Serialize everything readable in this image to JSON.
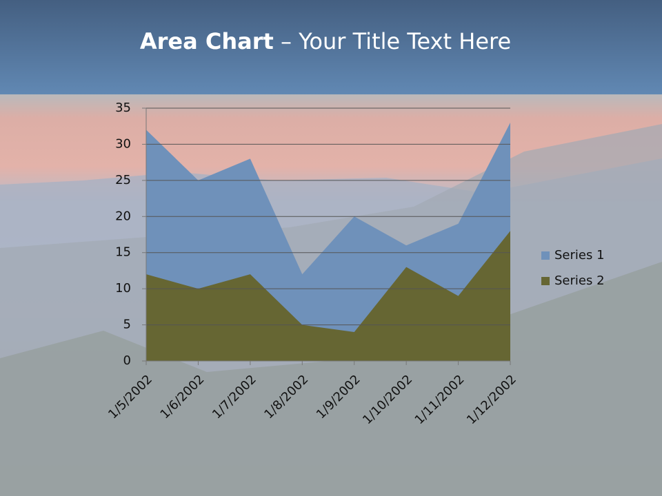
{
  "chart_data": {
    "type": "area",
    "title": {
      "bold": "Area Chart",
      "rest": "– Your Title Text Here"
    },
    "categories": [
      "1/5/2002",
      "1/6/2002",
      "1/7/2002",
      "1/8/2002",
      "1/9/2002",
      "1/10/2002",
      "1/11/2002",
      "1/12/2002"
    ],
    "series": [
      {
        "name": "Series 1",
        "color": "#6f91ba",
        "values": [
          32,
          25,
          28,
          12,
          20,
          16,
          19,
          33
        ]
      },
      {
        "name": "Series 2",
        "color": "#666633",
        "values": [
          12,
          10,
          12,
          5,
          4,
          13,
          9,
          18
        ]
      }
    ],
    "ylim": [
      0,
      35
    ],
    "yticks": [
      0,
      5,
      10,
      15,
      20,
      25,
      30,
      35
    ],
    "grid": true,
    "legend": "right"
  }
}
